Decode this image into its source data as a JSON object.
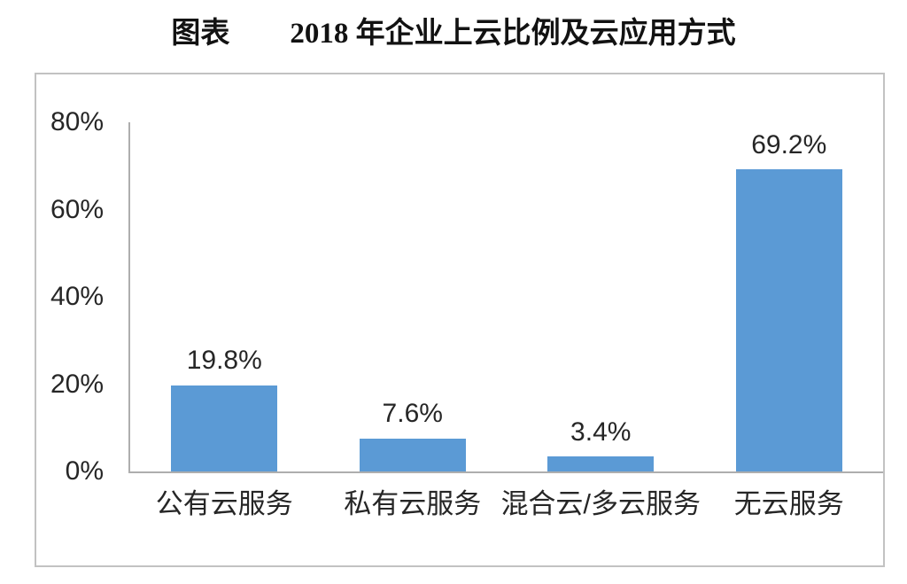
{
  "title": {
    "prefix": "图表",
    "text": "2018 年企业上云比例及云应用方式"
  },
  "chart_data": {
    "type": "bar",
    "title": "2018 年企业上云比例及云应用方式",
    "categories": [
      "公有云服务",
      "私有云服务",
      "混合云/多云服务",
      "无云服务"
    ],
    "values": [
      19.8,
      7.6,
      3.4,
      69.2
    ],
    "value_labels": [
      "19.8%",
      "7.6%",
      "3.4%",
      "69.2%"
    ],
    "ylim": [
      0,
      80
    ],
    "yticks": [
      "80%",
      "60%",
      "40%",
      "20%",
      "0%"
    ],
    "xlabel": "",
    "ylabel": "",
    "grid": false,
    "legend": "none",
    "colors": {
      "bar": "#5B9AD5",
      "axis": "#AEAEAE",
      "frame_border": "#C2C2C2",
      "text": "#262626"
    }
  }
}
